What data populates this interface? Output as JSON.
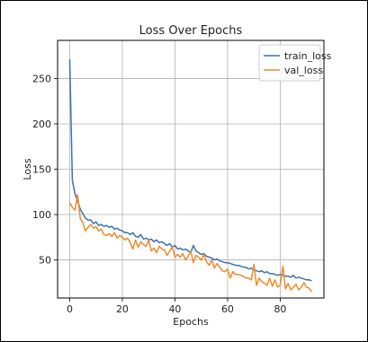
{
  "chart_data": {
    "type": "line",
    "title": "Loss Over Epochs",
    "xlabel": "Epochs",
    "ylabel": "Loss",
    "xlim": [
      -4.6,
      96.6
    ],
    "ylim": [
      8,
      292
    ],
    "xticks": [
      0,
      20,
      40,
      60,
      80
    ],
    "yticks": [
      50,
      100,
      150,
      200,
      250
    ],
    "grid": true,
    "legend_position": "top-right",
    "series": [
      {
        "name": "train_loss",
        "color": "#3a72b0",
        "x": [
          0,
          1,
          2,
          3,
          4,
          5,
          6,
          7,
          8,
          9,
          10,
          11,
          12,
          13,
          14,
          15,
          16,
          17,
          18,
          19,
          20,
          21,
          22,
          23,
          24,
          25,
          26,
          27,
          28,
          29,
          30,
          31,
          32,
          33,
          34,
          35,
          36,
          37,
          38,
          39,
          40,
          41,
          42,
          43,
          44,
          45,
          46,
          47,
          48,
          49,
          50,
          51,
          52,
          53,
          54,
          55,
          56,
          57,
          58,
          59,
          60,
          61,
          62,
          63,
          64,
          65,
          66,
          67,
          68,
          69,
          70,
          71,
          72,
          73,
          74,
          75,
          76,
          77,
          78,
          79,
          80,
          81,
          82,
          83,
          84,
          85,
          86,
          87,
          88,
          89,
          90,
          91,
          92
        ],
        "values": [
          271,
          138,
          123,
          115,
          106,
          101,
          96,
          94,
          94,
          90,
          92,
          88,
          89,
          87,
          88,
          86,
          87,
          84,
          85,
          83,
          82,
          80,
          80,
          78,
          80,
          76,
          75,
          78,
          73,
          74,
          72,
          73,
          70,
          72,
          69,
          70,
          68,
          66,
          68,
          64,
          66,
          62,
          63,
          61,
          62,
          60,
          58,
          66,
          60,
          58,
          56,
          57,
          54,
          53,
          52,
          50,
          51,
          49,
          48,
          47,
          47,
          46,
          45,
          44,
          44,
          43,
          42,
          42,
          40,
          41,
          39,
          38,
          37,
          38,
          36,
          37,
          35,
          35,
          34,
          33,
          34,
          33,
          32,
          32,
          31,
          33,
          30,
          31,
          30,
          29,
          28,
          28,
          27
        ]
      },
      {
        "name": "val_loss",
        "color": "#f08a2a",
        "x": [
          0,
          1,
          2,
          3,
          4,
          5,
          6,
          7,
          8,
          9,
          10,
          11,
          12,
          13,
          14,
          15,
          16,
          17,
          18,
          19,
          20,
          21,
          22,
          23,
          24,
          25,
          26,
          27,
          28,
          29,
          30,
          31,
          32,
          33,
          34,
          35,
          36,
          37,
          38,
          39,
          40,
          41,
          42,
          43,
          44,
          45,
          46,
          47,
          48,
          49,
          50,
          51,
          52,
          53,
          54,
          55,
          56,
          57,
          58,
          59,
          60,
          61,
          62,
          63,
          64,
          65,
          66,
          67,
          68,
          69,
          70,
          71,
          72,
          73,
          74,
          75,
          76,
          77,
          78,
          79,
          80,
          81,
          82,
          83,
          84,
          85,
          86,
          87,
          88,
          89,
          90,
          91,
          92
        ],
        "values": [
          113,
          108,
          105,
          122,
          96,
          91,
          82,
          86,
          89,
          85,
          87,
          82,
          84,
          78,
          77,
          79,
          76,
          80,
          74,
          77,
          75,
          72,
          74,
          69,
          62,
          72,
          64,
          70,
          67,
          65,
          72,
          60,
          63,
          58,
          65,
          62,
          61,
          55,
          60,
          64,
          53,
          56,
          53,
          57,
          50,
          54,
          60,
          47,
          55,
          53,
          50,
          56,
          48,
          44,
          50,
          41,
          46,
          42,
          38,
          37,
          40,
          30,
          37,
          34,
          34,
          33,
          32,
          30,
          30,
          28,
          45,
          22,
          30,
          26,
          24,
          22,
          30,
          21,
          28,
          20,
          22,
          43,
          18,
          24,
          17,
          20,
          23,
          17,
          20,
          25,
          20,
          19,
          15
        ]
      }
    ]
  }
}
